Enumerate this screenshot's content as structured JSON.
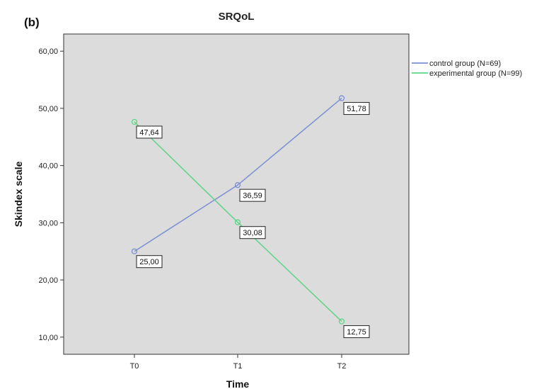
{
  "panel_label": "(b)",
  "colors": {
    "plot_background": "#dcdcdc",
    "control": "#7b8fd4",
    "experimental": "#5fd487"
  },
  "chart_data": {
    "type": "line",
    "title": "SRQoL",
    "xlabel": "Time",
    "ylabel": "Skindex scale",
    "categories": [
      "T0",
      "T1",
      "T2"
    ],
    "ylim": [
      7,
      63
    ],
    "yticks": [
      10,
      20,
      30,
      40,
      50,
      60
    ],
    "ytick_labels": [
      "10,00",
      "20,00",
      "30,00",
      "40,00",
      "50,00",
      "60,00"
    ],
    "grid": false,
    "legend_position": "right",
    "series": [
      {
        "name": "control group (N=69)",
        "color": "#7b8fd4",
        "values": [
          25.0,
          36.59,
          51.78
        ],
        "labels": [
          "25,00",
          "36,59",
          "51,78"
        ]
      },
      {
        "name": "experimental group (N=99)",
        "color": "#5fd487",
        "values": [
          47.64,
          30.08,
          12.75
        ],
        "labels": [
          "47,64",
          "30,08",
          "12,75"
        ]
      }
    ]
  }
}
